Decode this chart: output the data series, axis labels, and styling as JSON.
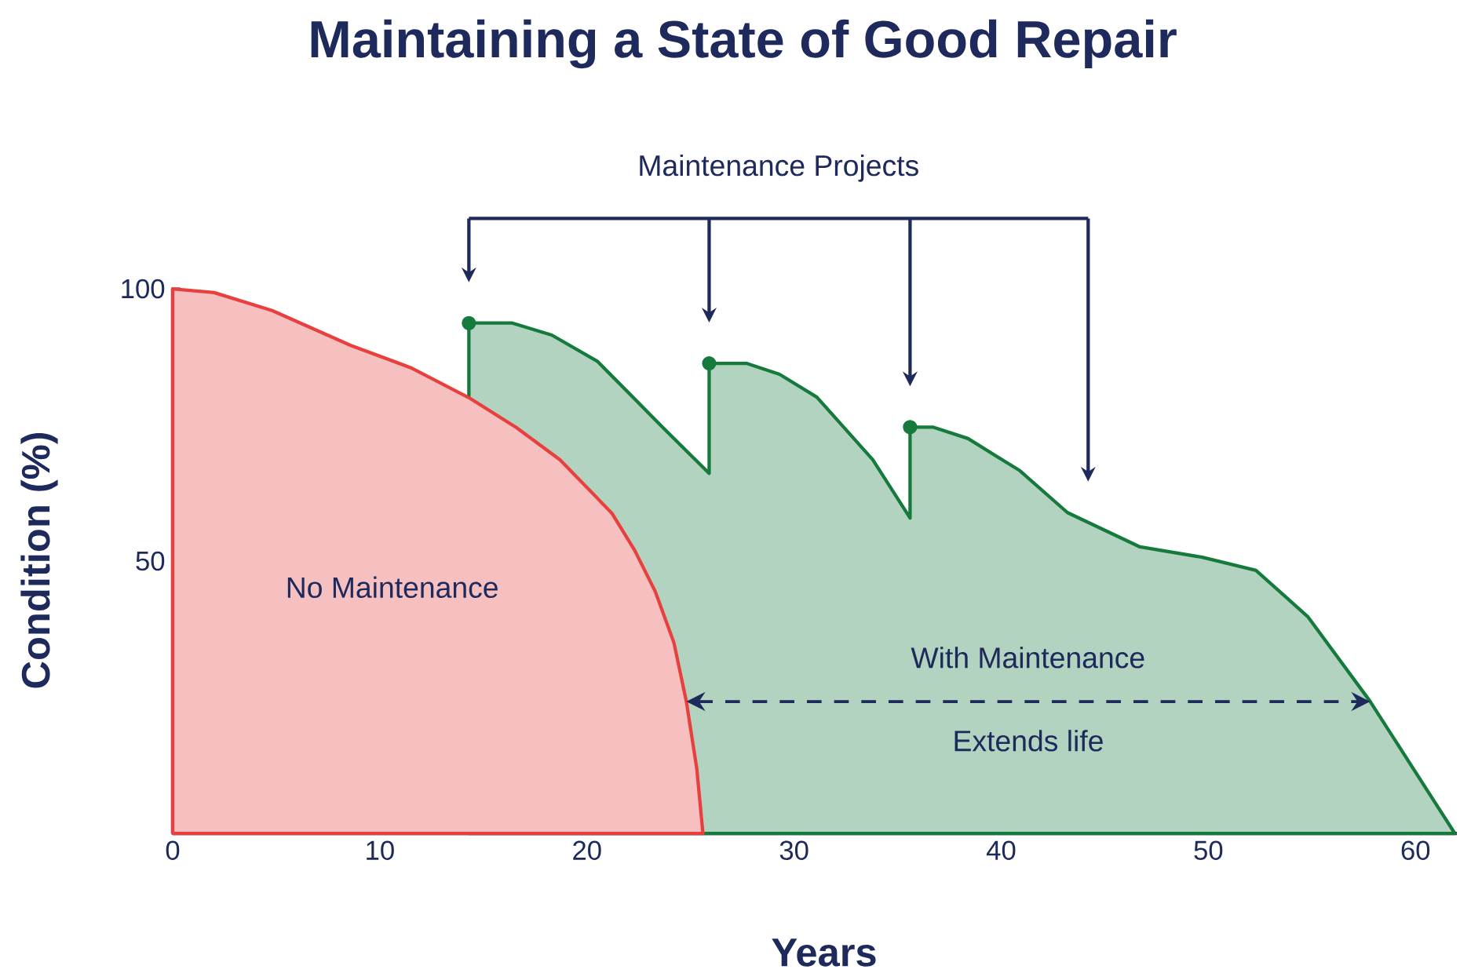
{
  "chart_data": {
    "type": "area",
    "title": "Maintaining a State of Good Repair",
    "xlabel": "Years",
    "ylabel": "Condition (%)",
    "xlim": [
      0,
      62
    ],
    "ylim": [
      0,
      100
    ],
    "xticks": [
      0,
      10,
      20,
      30,
      40,
      50,
      60
    ],
    "yticks": [
      50,
      100
    ],
    "series": [
      {
        "name": "With Maintenance",
        "color": "#157a3c",
        "x": [
          14.3,
          14.3,
          16.4,
          18.3,
          20.5,
          23.7,
          25.9,
          25.9,
          27.7,
          29.3,
          31.1,
          33.8,
          35.6,
          35.6,
          36.7,
          38.4,
          40.9,
          43.2,
          44.2,
          46.7,
          49.7,
          52.3,
          54.8,
          57.8,
          61.9
        ],
        "values": [
          80,
          93.7,
          93.7,
          91.5,
          86.7,
          74.4,
          66.1,
          86.3,
          86.3,
          84.3,
          80.1,
          68.6,
          57.9,
          74.6,
          74.6,
          72.5,
          66.6,
          58.9,
          57.1,
          52.6,
          50.7,
          48.3,
          39.8,
          24.3,
          0
        ]
      },
      {
        "name": "No Maintenance",
        "color": "#e8403f",
        "x": [
          0,
          2,
          4.8,
          8.6,
          11.5,
          14.3,
          16.6,
          18.7,
          21.2,
          22.3,
          23.3,
          24.2,
          24.8,
          25.3,
          25.6
        ],
        "values": [
          100,
          99.3,
          96,
          89.6,
          85.5,
          80,
          74.5,
          68.6,
          58.8,
          52,
          44.4,
          35,
          24.2,
          12,
          0
        ]
      },
      {
        "type": "scatter",
        "marker": "circle",
        "color": "#157a3c",
        "x": [
          14.3,
          25.9,
          35.6
        ],
        "values": [
          93.7,
          86.3,
          74.6
        ]
      }
    ],
    "annotations": [
      "Maintenance Projects",
      "Extends life"
    ]
  }
}
